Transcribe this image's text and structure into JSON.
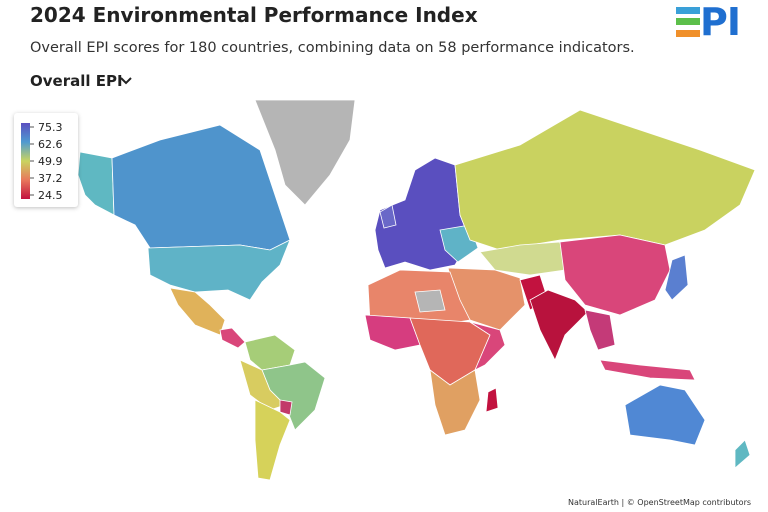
{
  "header": {
    "title": "2024 Environmental Performance Index",
    "subtitle": "Overall EPI scores for 180 countries, combining data on 58 performance indicators.",
    "selector": "Overall EPI",
    "logo": "PI"
  },
  "legend": {
    "ticks": [
      75.3,
      62.6,
      49.9,
      37.2,
      24.5
    ],
    "colors": [
      "#5b4fc0",
      "#4f9ad0",
      "#c9d461",
      "#e8785c",
      "#c2123f"
    ]
  },
  "attribution": "NaturalEarth | © OpenStreetMap contributors"
}
